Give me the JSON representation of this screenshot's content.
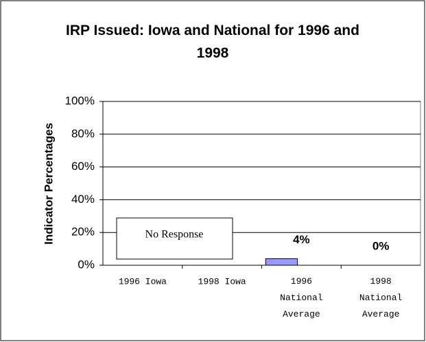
{
  "chart_data": {
    "type": "bar",
    "title": "IRP Issued: Iowa and National for 1996 and 1998",
    "y_axis_label": "Indicator Percentages",
    "categories": [
      "1996 Iowa",
      "1998 Iowa",
      "1996 National Average",
      "1998 National Average"
    ],
    "values": [
      null,
      null,
      4,
      0
    ],
    "value_labels": [
      null,
      null,
      "4%",
      "0%"
    ],
    "color": "#9999ff",
    "annotations": [
      "No Response"
    ],
    "ylim": [
      0,
      100
    ],
    "yticks": [
      {
        "value": 0,
        "label": "0%"
      },
      {
        "value": 20,
        "label": "20%"
      },
      {
        "value": 40,
        "label": "40%"
      },
      {
        "value": 60,
        "label": "60%"
      },
      {
        "value": 80,
        "label": "80%"
      },
      {
        "value": 100,
        "label": "100%"
      }
    ],
    "grid": true
  }
}
